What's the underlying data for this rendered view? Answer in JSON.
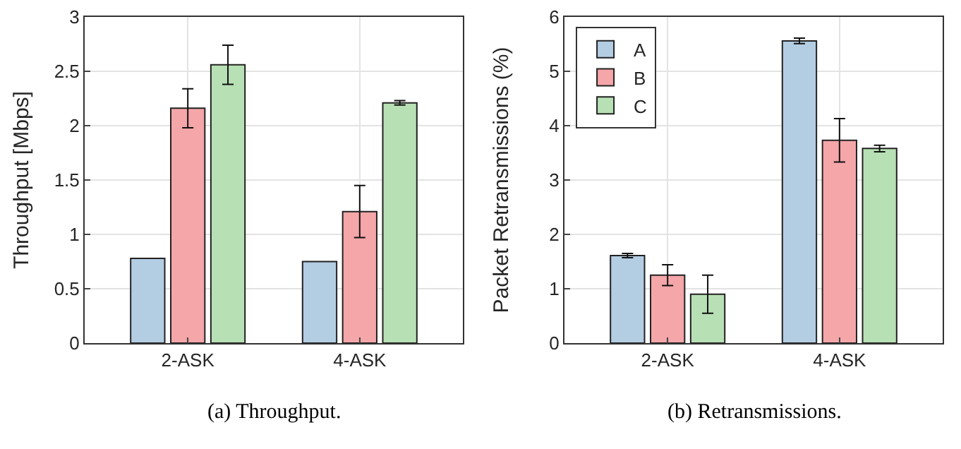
{
  "chart_data": [
    {
      "type": "bar",
      "categories": [
        "2-ASK",
        "4-ASK"
      ],
      "ylabel": "Throughput [Mbps]",
      "ylim": [
        0,
        3
      ],
      "yticks": [
        0,
        0.5,
        1,
        1.5,
        2,
        2.5,
        3
      ],
      "grid": true,
      "legend": false,
      "annotations": [
        "(a) Throughput."
      ],
      "series": [
        {
          "color": "#b3cde3",
          "values": [
            0.78,
            0.75
          ],
          "errors": [
            null,
            null
          ]
        },
        {
          "color": "#f4a6a9",
          "values": [
            2.16,
            1.21
          ],
          "errors": [
            0.18,
            0.24
          ]
        },
        {
          "color": "#b8e0b5",
          "values": [
            2.56,
            2.21
          ],
          "errors": [
            0.18,
            0.02
          ]
        }
      ]
    },
    {
      "type": "bar",
      "categories": [
        "2-ASK",
        "4-ASK"
      ],
      "ylabel": "Packet Retransmissions (%)",
      "ylim": [
        0,
        6
      ],
      "yticks": [
        0,
        1,
        2,
        3,
        4,
        5,
        6
      ],
      "grid": true,
      "legend": "top left",
      "annotations": [
        "(b) Retransmissions."
      ],
      "series": [
        {
          "name": "A",
          "color": "#b3cde3",
          "values": [
            1.61,
            5.56
          ],
          "errors": [
            0.04,
            0.05
          ]
        },
        {
          "name": "B",
          "color": "#f4a6a9",
          "values": [
            1.25,
            3.73
          ],
          "errors": [
            0.19,
            0.4
          ]
        },
        {
          "name": "C",
          "color": "#b8e0b5",
          "values": [
            0.9,
            3.58
          ],
          "errors": [
            0.35,
            0.06
          ]
        }
      ]
    }
  ]
}
